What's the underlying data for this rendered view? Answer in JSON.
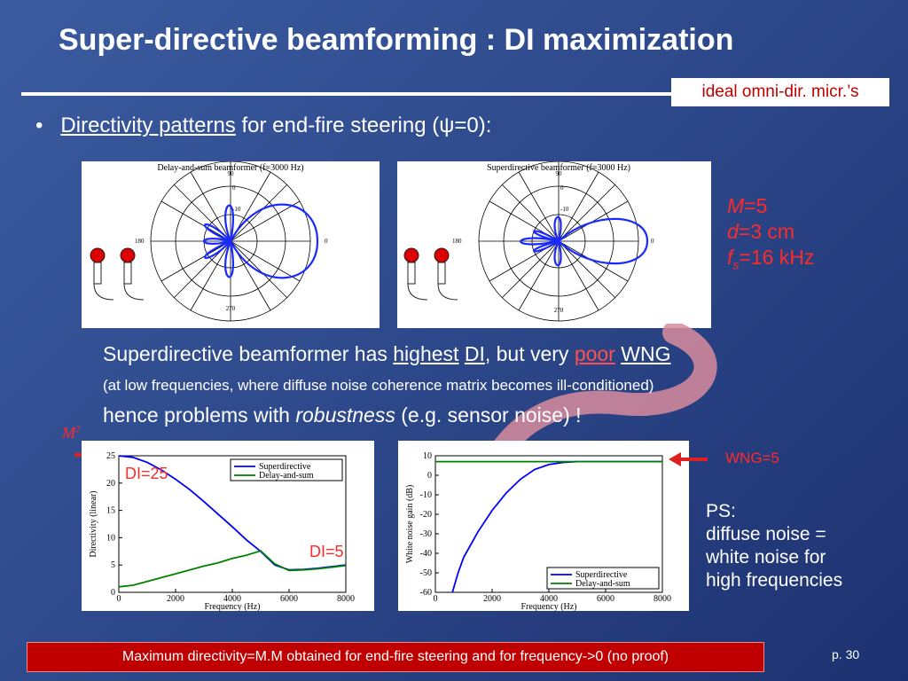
{
  "slide": {
    "title": "Super-directive beamforming : DI maximization",
    "tag": "ideal omni-dir. micr.’s",
    "bullet_link": "Directivity patterns",
    "bullet_rest": "for end-fire steering (ψ=0):",
    "params": {
      "M_var": "M",
      "M_val": "=5",
      "d_var": "d",
      "d_val": "=3 cm",
      "fs_var": "f",
      "fs_sub": "s",
      "fs_val": "=16 kHz"
    },
    "line1": {
      "a": "Superdirective beamformer has ",
      "b": "highest",
      "c": " ",
      "d": "DI",
      "e": ", but very ",
      "f": "poor",
      "g": " ",
      "h": "WNG"
    },
    "line2": "(at low frequencies, where diffuse noise coherence matrix becomes ill-conditioned)",
    "line3": {
      "a": "hence problems with ",
      "b": "robustness",
      "c": " (e.g. sensor noise) !"
    },
    "ps": {
      "l1": "PS:",
      "l2": "diffuse noise =",
      "l3": "white noise for",
      "l4": "high frequencies"
    },
    "bottom_note": "Maximum directivity=M.M  obtained for end-fire steering and for frequency->0  (no proof)",
    "page": "p. 30"
  },
  "polar_plots": [
    {
      "title": "Delay-and-sum beamformer (f=3000 Hz)",
      "angles": [
        "90",
        "180",
        "0",
        "270"
      ],
      "rings": [
        "0",
        "-10"
      ]
    },
    {
      "title": "Superdirective beamformer (f=3000 Hz)",
      "angles": [
        "90",
        "180",
        "0",
        "270"
      ],
      "rings": [
        "0",
        "-10"
      ]
    }
  ],
  "annotations": {
    "msq_base": "M",
    "msq_exp": "2",
    "di25": "DI=25",
    "di5": "DI=5",
    "wng5": "WNG=5"
  },
  "chart_data": [
    {
      "type": "line",
      "xlabel": "Frequency (Hz)",
      "ylabel": "Directivity (linear)",
      "xlim": [
        0,
        8000
      ],
      "ylim": [
        0,
        25
      ],
      "xticks": [
        "0",
        "2000",
        "4000",
        "6000",
        "8000"
      ],
      "yticks": [
        "0",
        "5",
        "10",
        "15",
        "20",
        "25"
      ],
      "legend_position": "top-right",
      "series": [
        {
          "name": "Superdirective",
          "color": "#0000ff",
          "x": [
            0,
            500,
            1000,
            1500,
            2000,
            2500,
            3000,
            3500,
            4000,
            4500,
            5000,
            5500,
            6000,
            6500,
            7000,
            7500,
            8000
          ],
          "y": [
            25,
            24.7,
            23.8,
            22.4,
            20.7,
            18.8,
            16.6,
            14.3,
            12,
            9.6,
            7.5,
            5,
            4.1,
            4.2,
            4.4,
            4.7,
            5
          ]
        },
        {
          "name": "Delay-and-sum",
          "color": "#008000",
          "x": [
            0,
            500,
            1000,
            1500,
            2000,
            2500,
            3000,
            3500,
            4000,
            4500,
            5000,
            5500,
            6000,
            6500,
            7000,
            7500,
            8000
          ],
          "y": [
            1,
            1.3,
            2,
            2.7,
            3.4,
            4.1,
            4.8,
            5.4,
            6.2,
            6.8,
            7.6,
            5.2,
            4,
            4.1,
            4.3,
            4.6,
            4.9
          ]
        }
      ]
    },
    {
      "type": "line",
      "xlabel": "Frequency (Hz)",
      "ylabel": "White noise gain (dB)",
      "xlim": [
        0,
        8000
      ],
      "ylim": [
        -60,
        10
      ],
      "xticks": [
        "0",
        "2000",
        "4000",
        "6000",
        "8000"
      ],
      "yticks": [
        "10",
        "0",
        "-10",
        "-20",
        "-30",
        "-40",
        "-50",
        "-60"
      ],
      "legend_position": "bottom-right",
      "series": [
        {
          "name": "Superdirective",
          "color": "#0000ff",
          "x": [
            600,
            800,
            1000,
            1500,
            2000,
            2500,
            3000,
            3500,
            4000,
            4500,
            5000,
            5500,
            6000,
            7000,
            8000
          ],
          "y": [
            -60,
            -50,
            -42,
            -29,
            -18,
            -9,
            -2,
            3,
            5.5,
            6.6,
            7,
            7,
            7,
            7,
            7
          ]
        },
        {
          "name": "Delay-and-sum",
          "color": "#008000",
          "x": [
            0,
            8000
          ],
          "y": [
            7,
            7
          ]
        }
      ]
    }
  ]
}
